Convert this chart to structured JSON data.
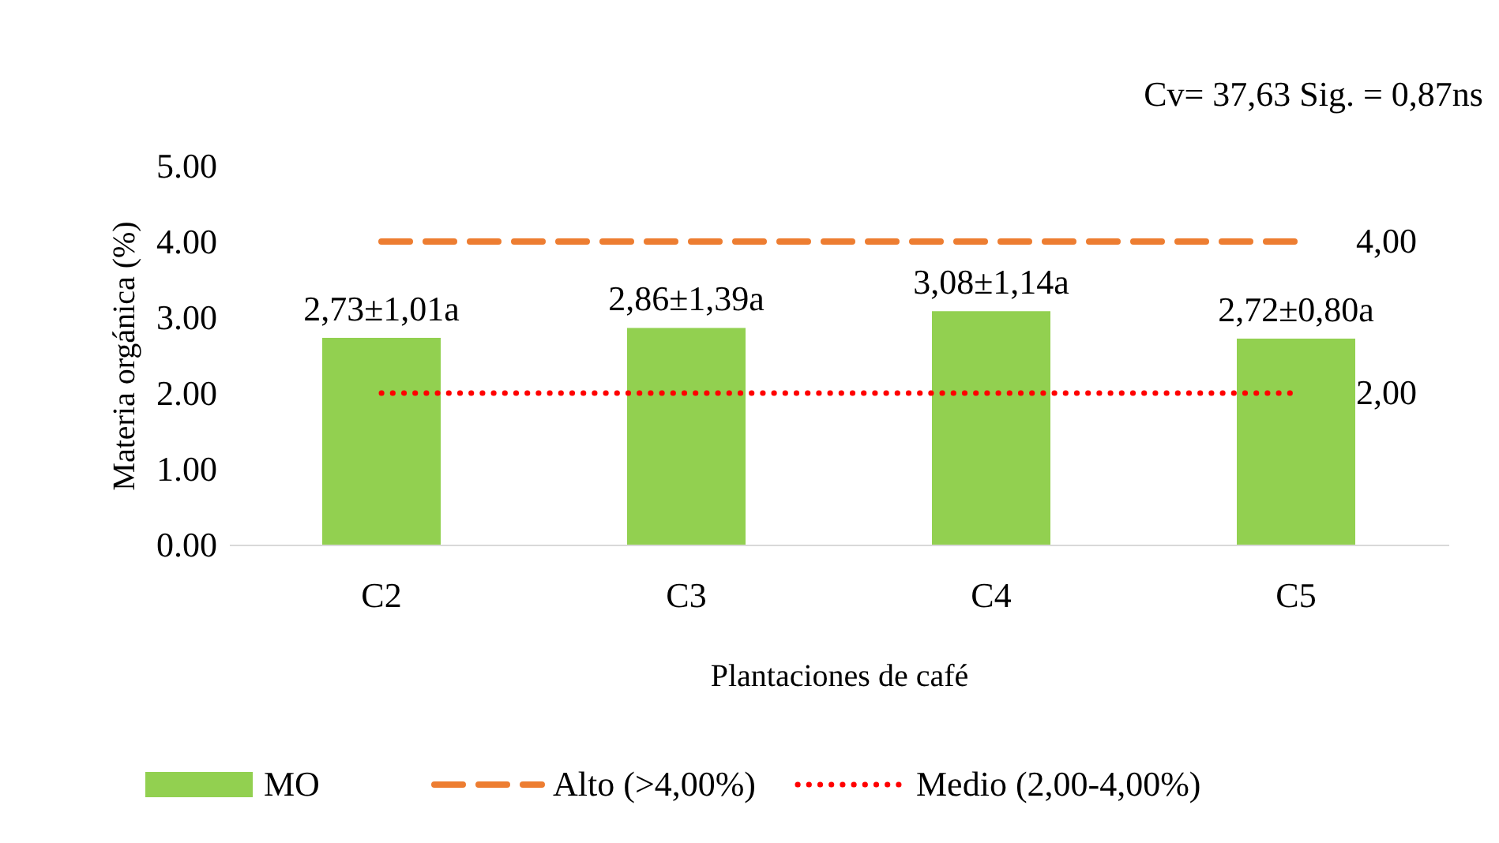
{
  "chart_data": {
    "type": "bar",
    "xlabel": "Plantaciones de café",
    "ylabel": "Materia orgánica (%)",
    "categories": [
      "C2",
      "C3",
      "C4",
      "C5"
    ],
    "series": [
      {
        "name": "MO",
        "color": "#92d050",
        "values": [
          2.73,
          2.86,
          3.08,
          2.72
        ],
        "value_labels": [
          "2,73±1,01a",
          "2,86±1,39a",
          "3,08±1,14a",
          "2,72±0,80a"
        ]
      },
      {
        "name": "Alto (>4,00%)",
        "type": "line",
        "color": "#ed7d31",
        "line_style": "dashed",
        "values": [
          4,
          4,
          4,
          4
        ],
        "value_labels": [
          null,
          null,
          null,
          "4,00"
        ]
      },
      {
        "name": "Medio (2,00-4,00%)",
        "type": "line",
        "color": "#ff0000",
        "line_style": "dotted",
        "values": [
          2,
          2,
          2,
          2
        ],
        "value_labels": [
          null,
          null,
          null,
          "2,00"
        ]
      }
    ],
    "ylim": [
      0,
      5
    ],
    "yticks": [
      {
        "value": 0,
        "label": "0.00"
      },
      {
        "value": 1,
        "label": "1.00"
      },
      {
        "value": 2,
        "label": "2.00"
      },
      {
        "value": 3,
        "label": "3.00"
      },
      {
        "value": 4,
        "label": "4.00"
      },
      {
        "value": 5,
        "label": "5.00"
      }
    ],
    "annotations": [
      "Cv= 37,63  Sig. = 0,87ns"
    ],
    "grid": false,
    "legend": "bottom",
    "marker": "none"
  }
}
